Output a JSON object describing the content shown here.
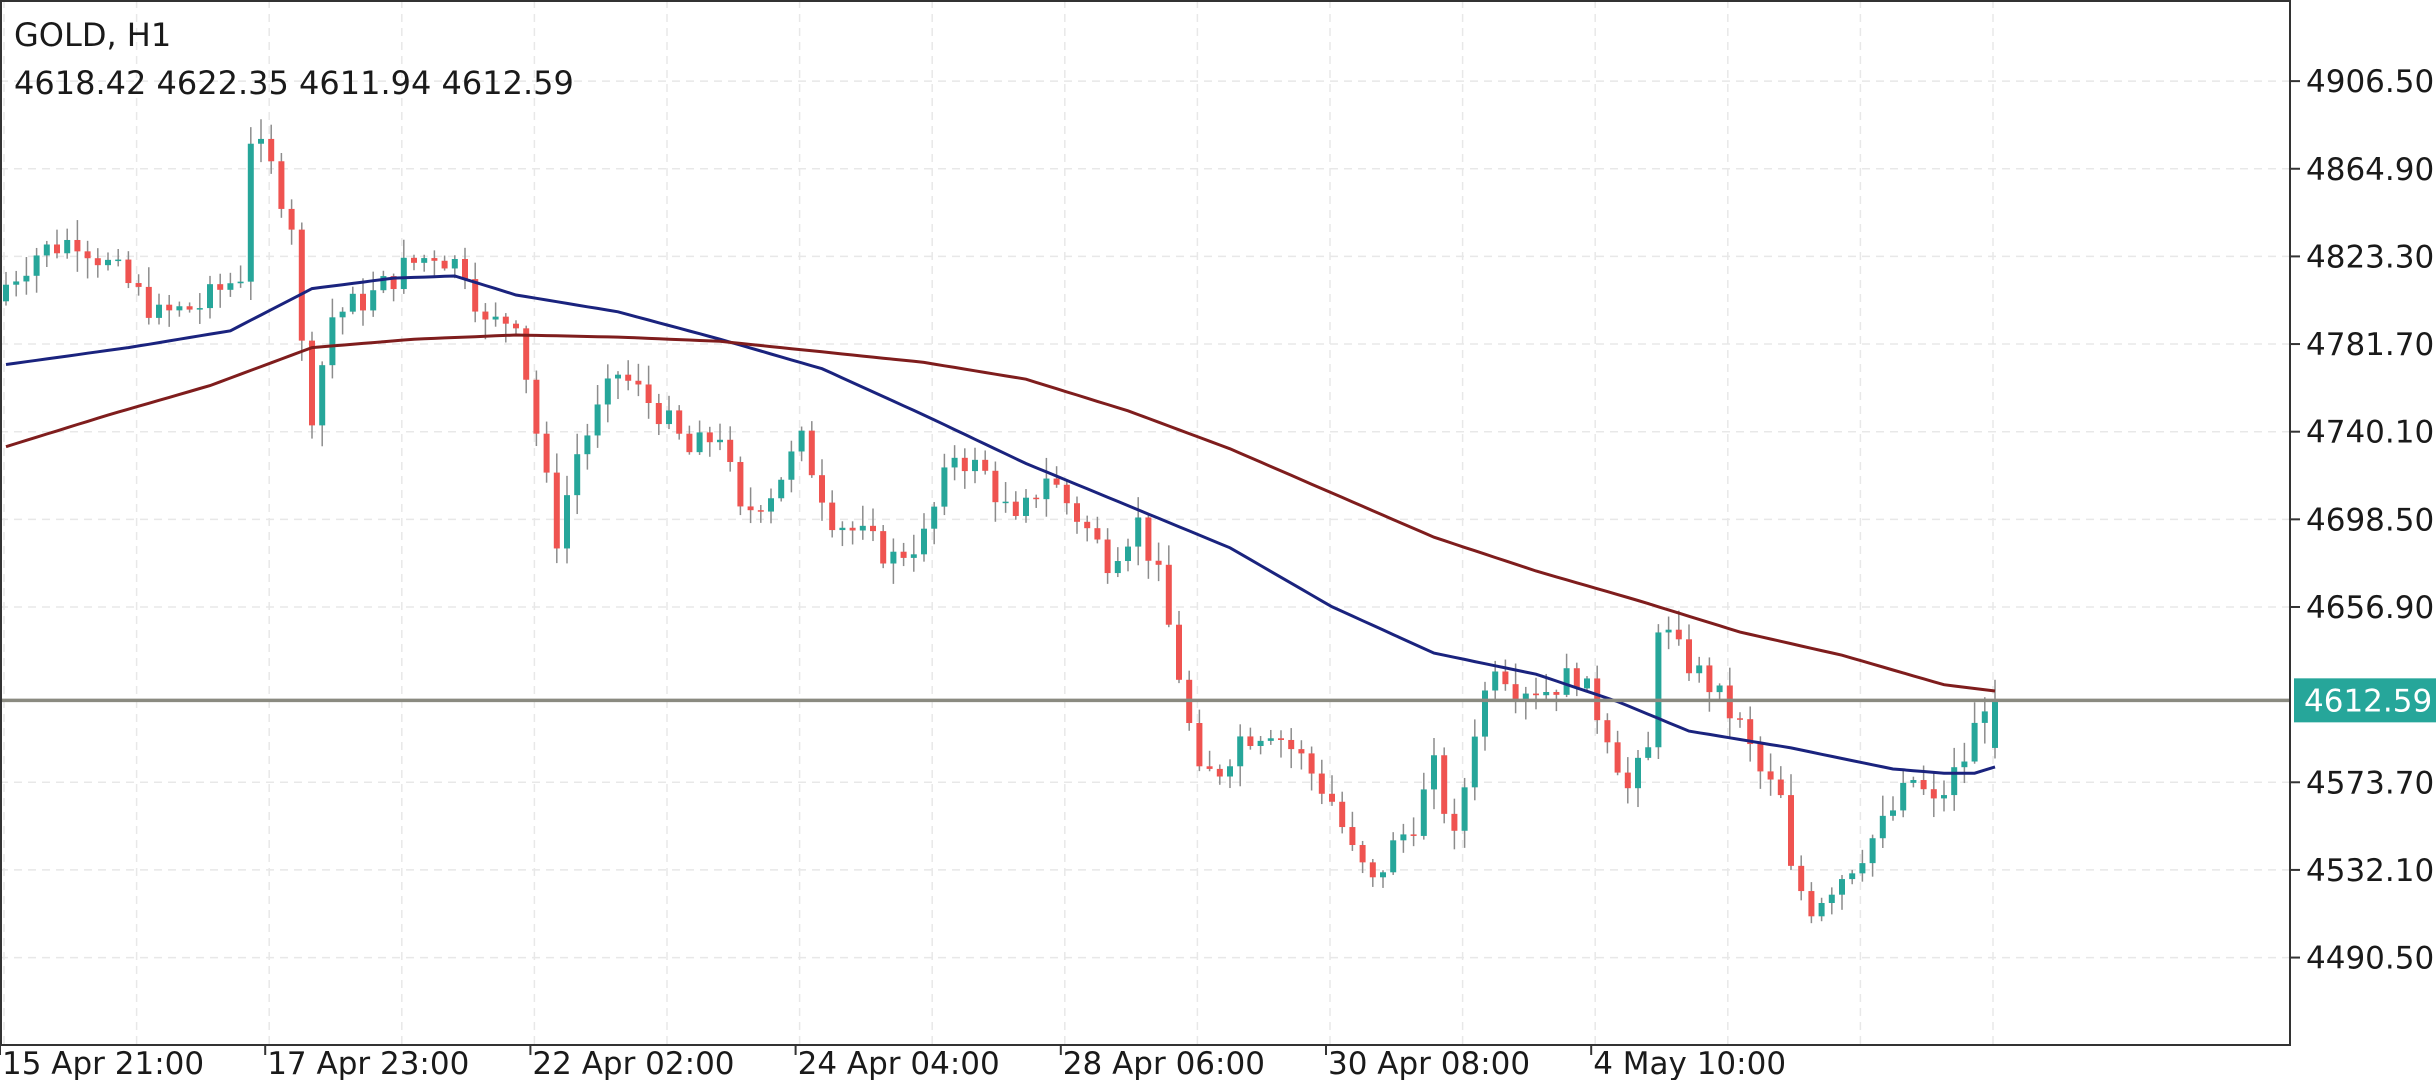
{
  "header": {
    "symbol_timeframe": "GOLD, H1",
    "ohlc": "4618.42 4622.35 4611.94 4612.59"
  },
  "colors": {
    "bull": "#26a69a",
    "bear": "#ef5350",
    "wick": "#8c8c8c",
    "ma_fast": "#1a237e",
    "ma_slow": "#7f1d1d",
    "price_line": "#8a8a80",
    "price_tag": "#26a69a",
    "grid": "#e8e8e8",
    "axis": "#333333"
  },
  "chart_data": {
    "type": "candlestick",
    "symbol": "GOLD",
    "timeframe": "H1",
    "ylim": [
      4449,
      4945
    ],
    "y_ticks": [
      "4906.50",
      "4864.90",
      "4823.30",
      "4781.70",
      "4740.10",
      "4698.50",
      "4656.90",
      "4573.70",
      "4532.10",
      "4490.50"
    ],
    "x_ticks": [
      "15 Apr 21:00",
      "17 Apr 23:00",
      "22 Apr 02:00",
      "24 Apr 04:00",
      "28 Apr 06:00",
      "30 Apr 08:00",
      "4 May 10:00"
    ],
    "x_tick_bar_index": [
      0,
      26,
      52,
      78,
      104,
      130,
      156
    ],
    "bar_count": 196,
    "last_price": "4612.59",
    "last_ohlc": {
      "open": 4618.42,
      "high": 4622.35,
      "low": 4611.94,
      "close": 4612.59
    },
    "close_path": [
      [
        0,
        4805
      ],
      [
        4,
        4825
      ],
      [
        8,
        4832
      ],
      [
        12,
        4815
      ],
      [
        16,
        4795
      ],
      [
        20,
        4800
      ],
      [
        24,
        4815
      ],
      [
        25,
        4880
      ],
      [
        27,
        4865
      ],
      [
        29,
        4840
      ],
      [
        30,
        4780
      ],
      [
        31,
        4750
      ],
      [
        33,
        4795
      ],
      [
        37,
        4805
      ],
      [
        40,
        4818
      ],
      [
        43,
        4825
      ],
      [
        46,
        4818
      ],
      [
        48,
        4790
      ],
      [
        51,
        4795
      ],
      [
        53,
        4740
      ],
      [
        55,
        4690
      ],
      [
        57,
        4730
      ],
      [
        61,
        4768
      ],
      [
        65,
        4750
      ],
      [
        68,
        4730
      ],
      [
        71,
        4740
      ],
      [
        73,
        4700
      ],
      [
        76,
        4712
      ],
      [
        79,
        4735
      ],
      [
        82,
        4700
      ],
      [
        85,
        4690
      ],
      [
        88,
        4680
      ],
      [
        91,
        4690
      ],
      [
        94,
        4730
      ],
      [
        97,
        4720
      ],
      [
        100,
        4695
      ],
      [
        103,
        4720
      ],
      [
        106,
        4700
      ],
      [
        109,
        4680
      ],
      [
        112,
        4697
      ],
      [
        114,
        4670
      ],
      [
        116,
        4625
      ],
      [
        118,
        4575
      ],
      [
        120,
        4580
      ],
      [
        122,
        4595
      ],
      [
        125,
        4600
      ],
      [
        128,
        4585
      ],
      [
        131,
        4565
      ],
      [
        133,
        4540
      ],
      [
        135,
        4525
      ],
      [
        137,
        4543
      ],
      [
        139,
        4555
      ],
      [
        141,
        4580
      ],
      [
        143,
        4545
      ],
      [
        145,
        4600
      ],
      [
        147,
        4632
      ],
      [
        149,
        4620
      ],
      [
        152,
        4618
      ],
      [
        155,
        4625
      ],
      [
        158,
        4598
      ],
      [
        160,
        4570
      ],
      [
        162,
        4588
      ],
      [
        163,
        4650
      ],
      [
        165,
        4635
      ],
      [
        168,
        4620
      ],
      [
        171,
        4600
      ],
      [
        173,
        4578
      ],
      [
        175,
        4565
      ],
      [
        176,
        4530
      ],
      [
        178,
        4515
      ],
      [
        180,
        4525
      ],
      [
        182,
        4535
      ],
      [
        185,
        4553
      ],
      [
        188,
        4575
      ],
      [
        190,
        4562
      ],
      [
        193,
        4585
      ],
      [
        195,
        4613
      ]
    ],
    "series": [
      {
        "name": "",
        "color": "#1a237e",
        "values": [
          [
            0,
            4772
          ],
          [
            12,
            4780
          ],
          [
            22,
            4788
          ],
          [
            30,
            4808
          ],
          [
            38,
            4813
          ],
          [
            44,
            4814
          ],
          [
            50,
            4805
          ],
          [
            60,
            4797
          ],
          [
            70,
            4784
          ],
          [
            80,
            4770
          ],
          [
            90,
            4748
          ],
          [
            100,
            4725
          ],
          [
            110,
            4705
          ],
          [
            120,
            4685
          ],
          [
            130,
            4657
          ],
          [
            140,
            4635
          ],
          [
            150,
            4625
          ],
          [
            158,
            4612
          ],
          [
            165,
            4598
          ],
          [
            175,
            4590
          ],
          [
            185,
            4580
          ],
          [
            190,
            4578
          ],
          [
            193,
            4578
          ],
          [
            195,
            4581
          ]
        ]
      },
      {
        "name": "",
        "color": "#7f1d1d",
        "values": [
          [
            0,
            4733
          ],
          [
            10,
            4748
          ],
          [
            20,
            4762
          ],
          [
            30,
            4780
          ],
          [
            40,
            4784
          ],
          [
            50,
            4786
          ],
          [
            60,
            4785
          ],
          [
            70,
            4783
          ],
          [
            80,
            4778
          ],
          [
            90,
            4773
          ],
          [
            100,
            4765
          ],
          [
            110,
            4750
          ],
          [
            120,
            4732
          ],
          [
            130,
            4711
          ],
          [
            140,
            4690
          ],
          [
            150,
            4674
          ],
          [
            160,
            4660
          ],
          [
            170,
            4645
          ],
          [
            180,
            4634
          ],
          [
            190,
            4620
          ],
          [
            195,
            4617
          ]
        ]
      }
    ]
  }
}
